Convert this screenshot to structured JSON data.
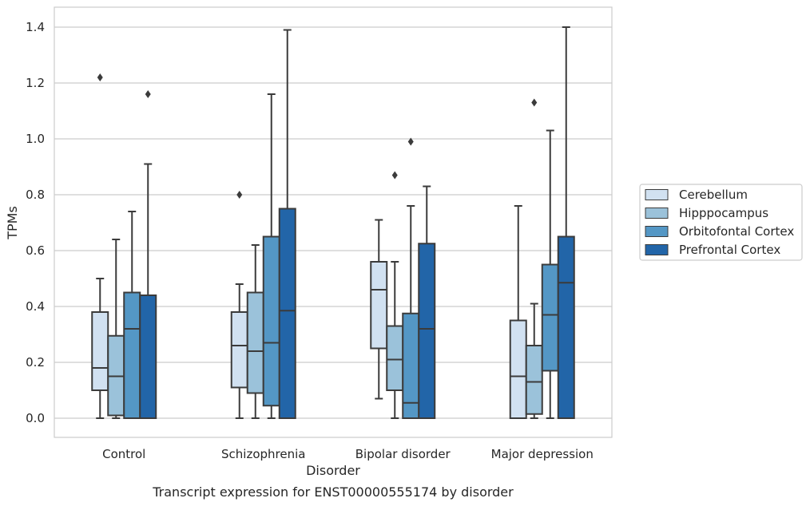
{
  "chart_data": {
    "type": "box",
    "xlabel": "Disorder",
    "ylabel": "TPMs",
    "caption": "Transcript expression for ENST00000555174 by disorder",
    "ylim": [
      -0.07,
      1.47
    ],
    "yticks": [
      "0.0",
      "0.2",
      "0.4",
      "0.6",
      "0.8",
      "1.0",
      "1.2",
      "1.4"
    ],
    "grid": true,
    "legend_position": "right",
    "categories": [
      "Control",
      "Schizophrenia",
      "Bipolar disorder",
      "Major depression"
    ],
    "series": [
      {
        "name": "Cerebellum",
        "color": "#d1e1f1",
        "boxes": [
          {
            "whislo": 0.0,
            "q1": 0.1,
            "med": 0.18,
            "q3": 0.38,
            "whishi": 0.5,
            "fliers": [
              1.22
            ]
          },
          {
            "whislo": 0.0,
            "q1": 0.11,
            "med": 0.26,
            "q3": 0.38,
            "whishi": 0.48,
            "fliers": [
              0.8
            ]
          },
          {
            "whislo": 0.07,
            "q1": 0.25,
            "med": 0.46,
            "q3": 0.56,
            "whishi": 0.71,
            "fliers": []
          },
          {
            "whislo": 0.0,
            "q1": 0.0,
            "med": 0.15,
            "q3": 0.35,
            "whishi": 0.76,
            "fliers": []
          }
        ]
      },
      {
        "name": "Hipppocampus",
        "color": "#9bc2da",
        "boxes": [
          {
            "whislo": 0.0,
            "q1": 0.01,
            "med": 0.15,
            "q3": 0.295,
            "whishi": 0.64,
            "fliers": []
          },
          {
            "whislo": 0.0,
            "q1": 0.09,
            "med": 0.24,
            "q3": 0.45,
            "whishi": 0.62,
            "fliers": []
          },
          {
            "whislo": 0.0,
            "q1": 0.1,
            "med": 0.21,
            "q3": 0.33,
            "whishi": 0.56,
            "fliers": [
              0.87
            ]
          },
          {
            "whislo": 0.0,
            "q1": 0.015,
            "med": 0.13,
            "q3": 0.26,
            "whishi": 0.41,
            "fliers": [
              1.13
            ]
          }
        ]
      },
      {
        "name": "Orbitofontal Cortex",
        "color": "#5497c5",
        "boxes": [
          {
            "whislo": 0.0,
            "q1": 0.0,
            "med": 0.32,
            "q3": 0.45,
            "whishi": 0.74,
            "fliers": []
          },
          {
            "whislo": 0.0,
            "q1": 0.045,
            "med": 0.27,
            "q3": 0.65,
            "whishi": 1.16,
            "fliers": []
          },
          {
            "whislo": 0.0,
            "q1": 0.0,
            "med": 0.055,
            "q3": 0.375,
            "whishi": 0.76,
            "fliers": [
              0.99
            ]
          },
          {
            "whislo": 0.0,
            "q1": 0.17,
            "med": 0.37,
            "q3": 0.55,
            "whishi": 1.03,
            "fliers": []
          }
        ]
      },
      {
        "name": "Prefrontal Cortex",
        "color": "#2265a8",
        "boxes": [
          {
            "whislo": 0.0,
            "q1": 0.0,
            "med": 0.0,
            "q3": 0.44,
            "whishi": 0.91,
            "fliers": [
              1.16
            ]
          },
          {
            "whislo": 0.0,
            "q1": 0.0,
            "med": 0.385,
            "q3": 0.75,
            "whishi": 1.39,
            "fliers": []
          },
          {
            "whislo": 0.0,
            "q1": 0.0,
            "med": 0.32,
            "q3": 0.625,
            "whishi": 0.83,
            "fliers": []
          },
          {
            "whislo": 0.0,
            "q1": 0.0,
            "med": 0.485,
            "q3": 0.65,
            "whishi": 1.4,
            "fliers": []
          }
        ]
      }
    ]
  }
}
